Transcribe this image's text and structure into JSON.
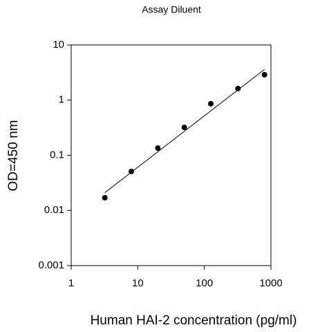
{
  "chart_data": {
    "type": "scatter",
    "title": "Assay Diluent",
    "x_label": "Human HAI-2 concentration (pg/ml)",
    "y_label": "OD=450 nm",
    "series": [
      {
        "color": "#000000",
        "x": [
          3.2,
          8,
          20,
          50,
          125,
          320,
          800
        ],
        "values": [
          0.017,
          0.051,
          0.135,
          0.32,
          0.86,
          1.62,
          2.89
        ]
      }
    ],
    "fit_line": {
      "color": "#000000",
      "x": [
        3.2,
        800
      ],
      "values": [
        0.021,
        3.6
      ]
    },
    "x_log": true,
    "y_log": true,
    "xlim": [
      1,
      1000
    ],
    "xticks": [
      1,
      10,
      100,
      1000
    ],
    "ylim": [
      0.001,
      10
    ],
    "yticks": [
      0.001,
      0.01,
      0.1,
      1,
      10
    ]
  }
}
